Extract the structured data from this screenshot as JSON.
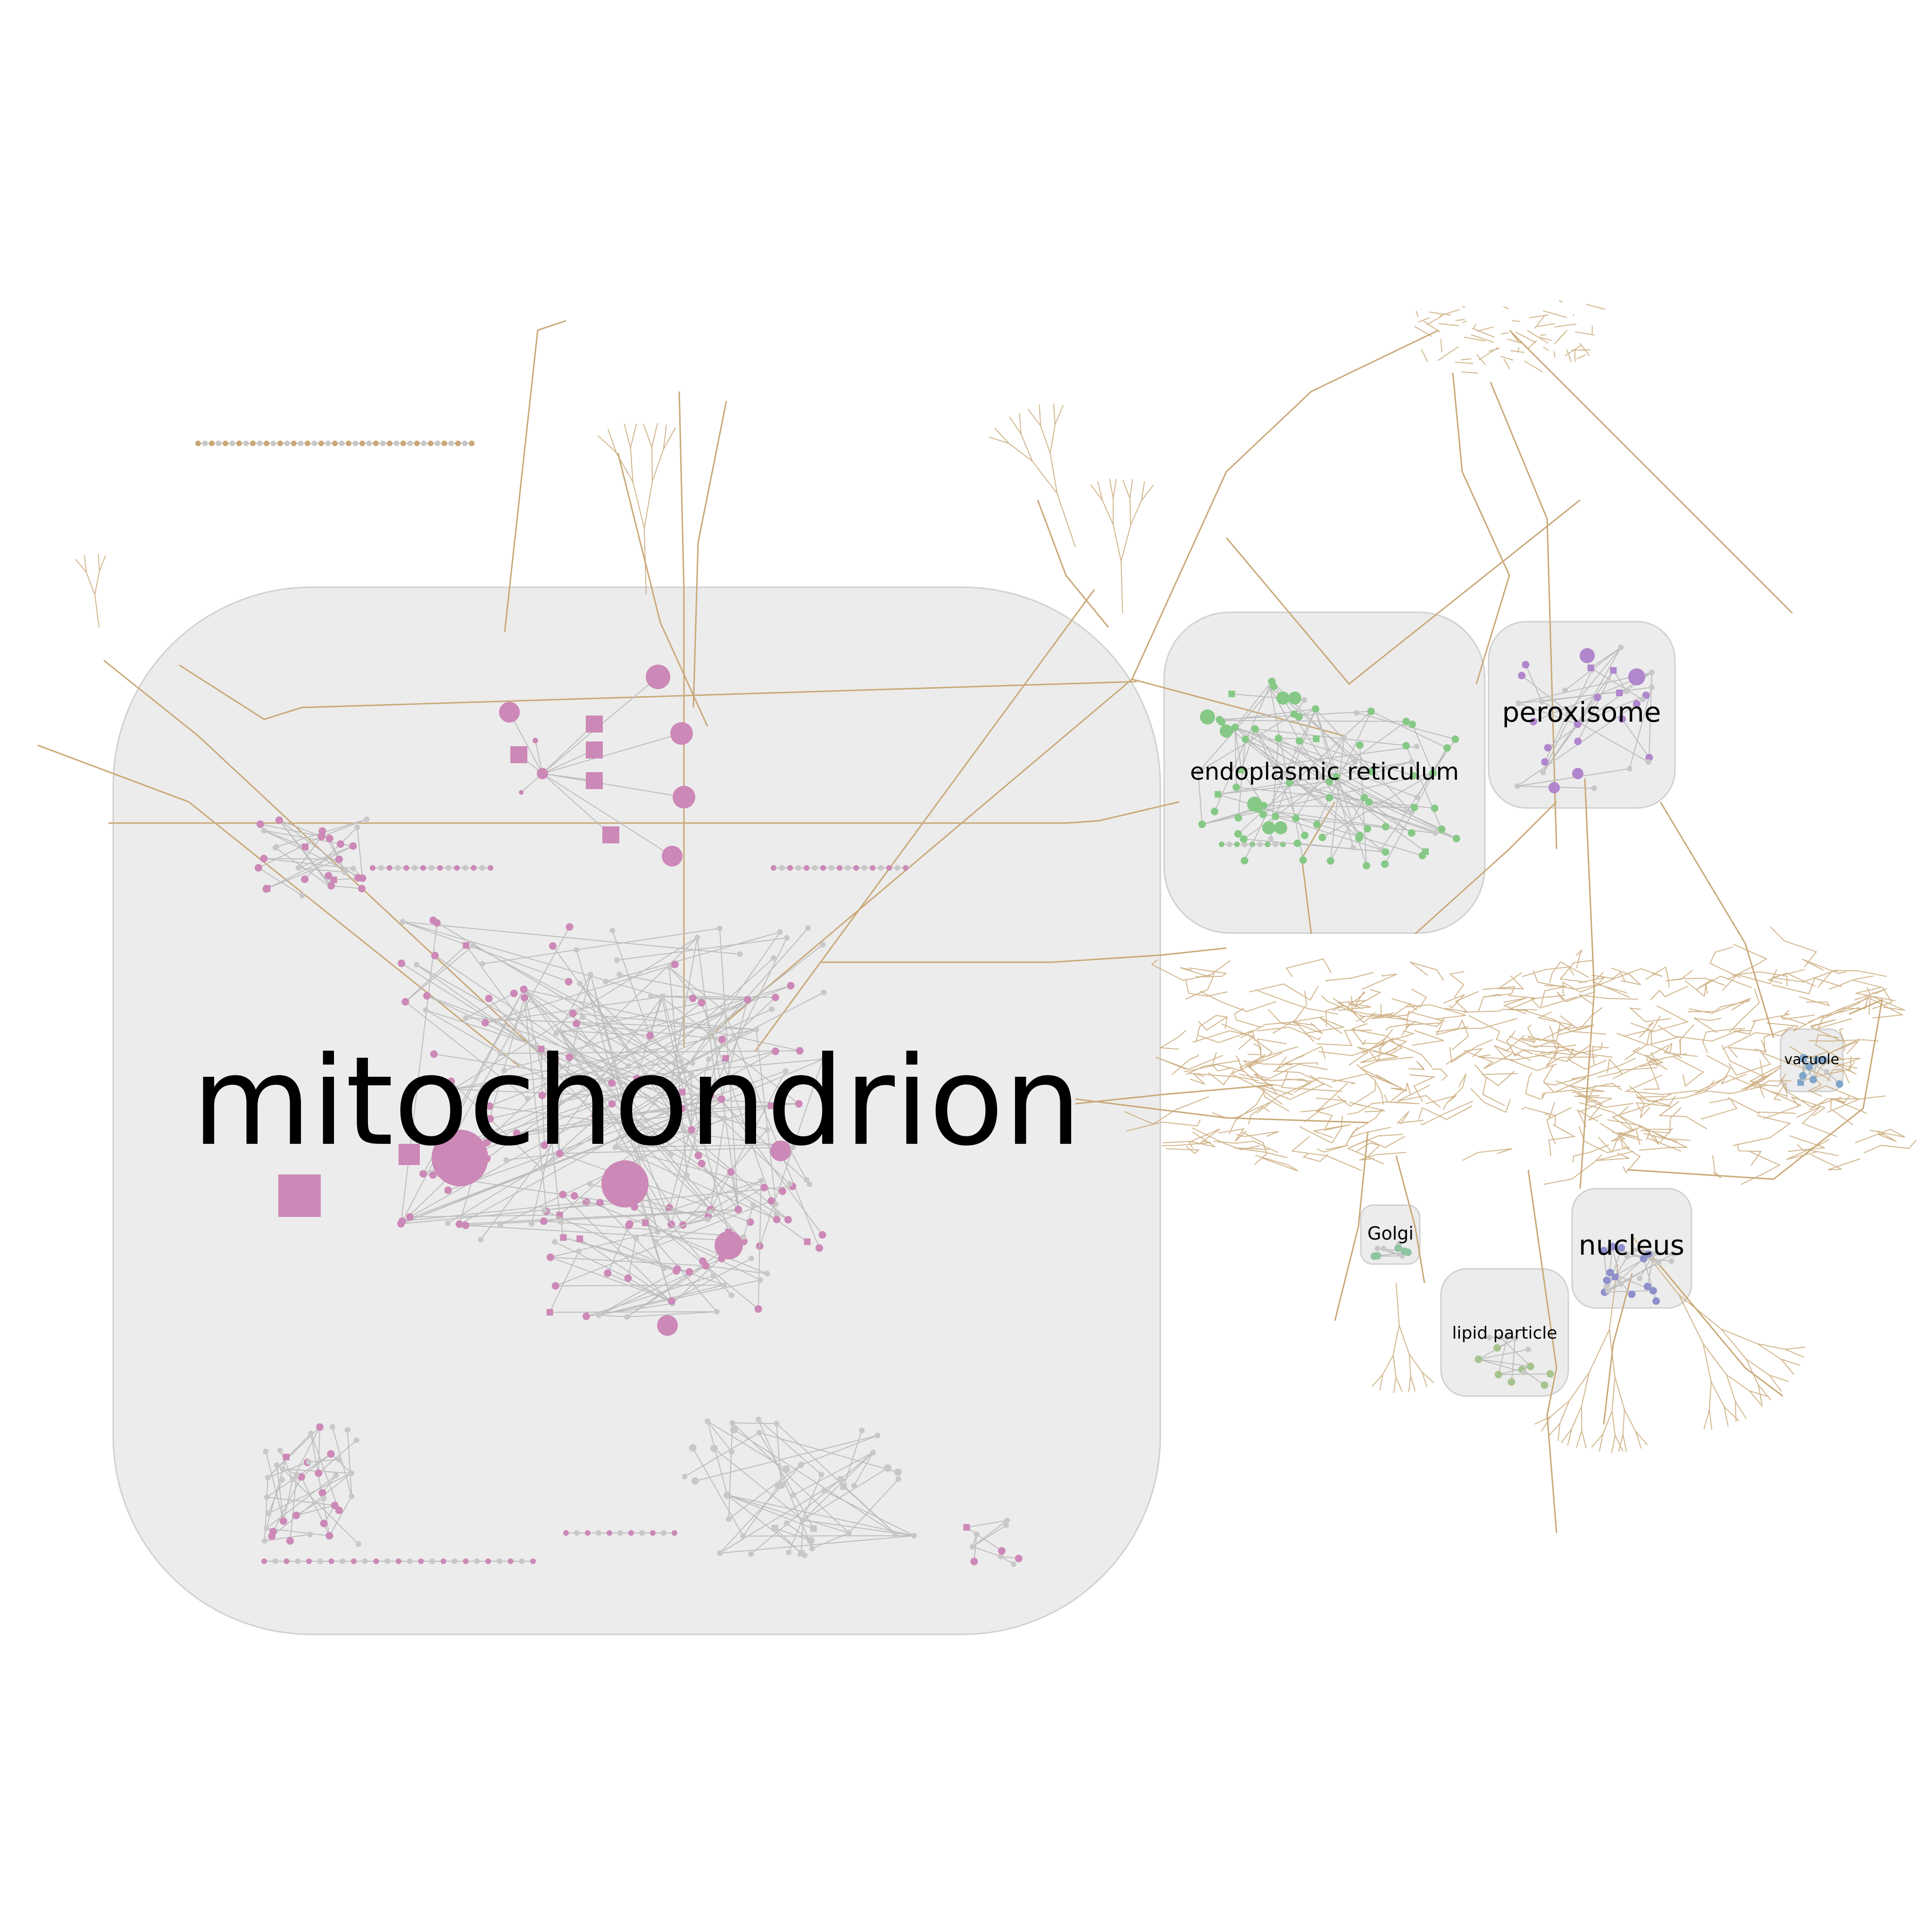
{
  "compartments": [
    {
      "id": "mitochondrion",
      "label": "mitochondrion",
      "node_color": "#cc88b6"
    },
    {
      "id": "endoplasmic-reticulum",
      "label": "endoplasmic reticulum",
      "node_color": "#86c986"
    },
    {
      "id": "peroxisome",
      "label": "peroxisome",
      "node_color": "#b086cc"
    },
    {
      "id": "vacuole",
      "label": "vacuole",
      "node_color": "#7fa6c9"
    },
    {
      "id": "golgi",
      "label": "Golgi",
      "node_color": "#8fc4a0"
    },
    {
      "id": "nucleus",
      "label": "nucleus",
      "node_color": "#8f8fcc"
    },
    {
      "id": "lipid-particle",
      "label": "lipid particle",
      "node_color": "#a6c48f"
    }
  ],
  "colors": {
    "compartment_fill": "#ececec",
    "compartment_border": "#d0d0d0",
    "cytoplasm_edge": "#c9a877",
    "inner_edge": "#bdbdbd",
    "gray_node": "#c8c8c8"
  }
}
